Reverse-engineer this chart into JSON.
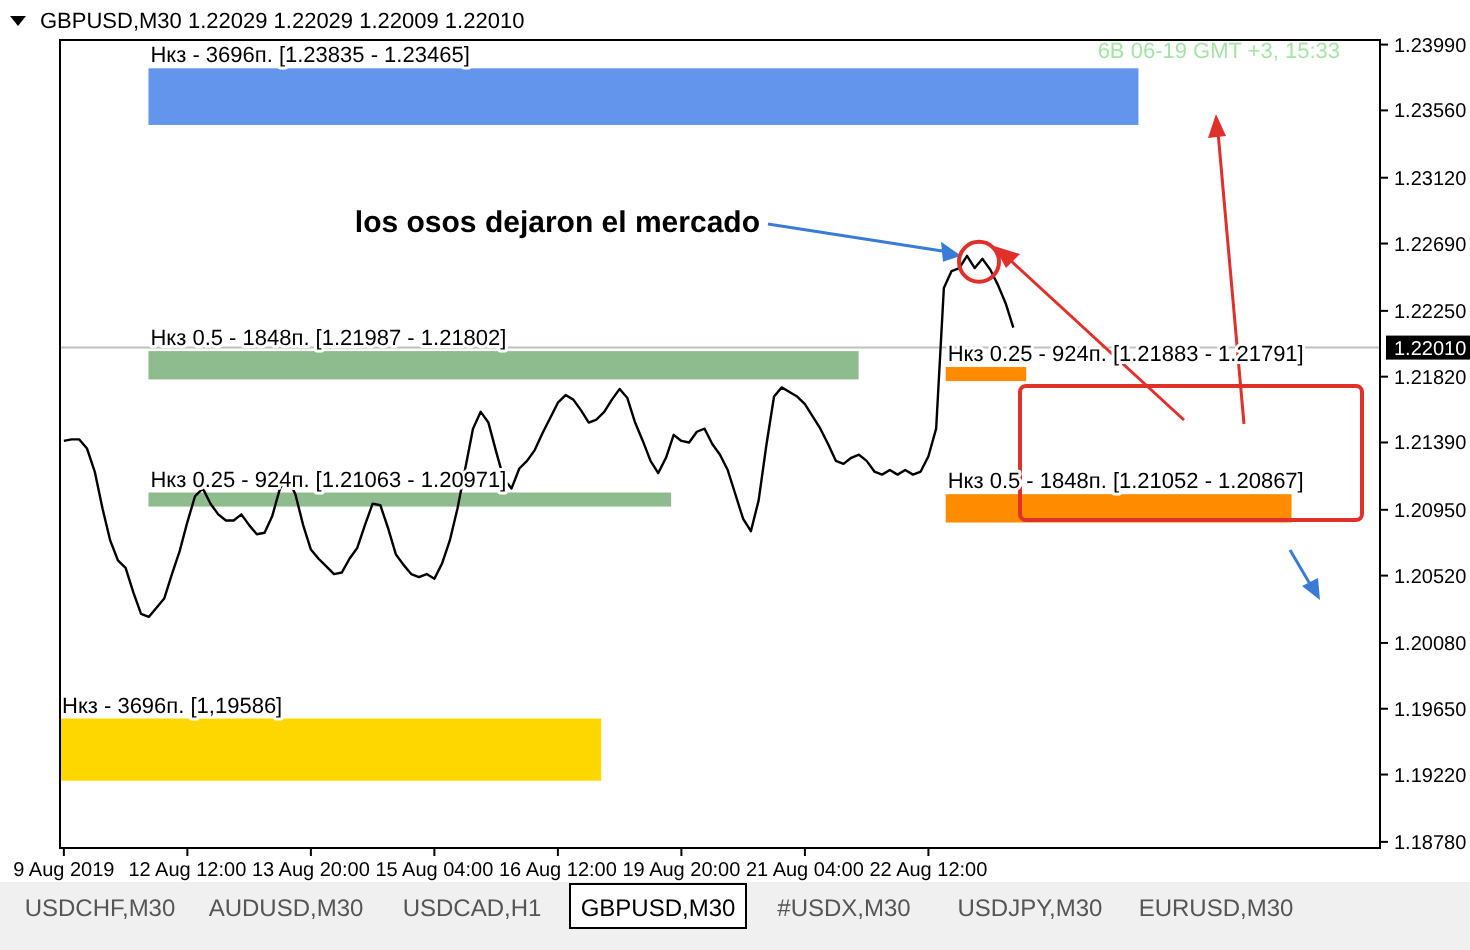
{
  "chart_data": {
    "type": "line",
    "title": "GBPUSD,M30  1.22029 1.22029 1.22009 1.22010",
    "categories": [
      "9 Aug 2019",
      null,
      null,
      null,
      null,
      null,
      null,
      null,
      null,
      null,
      null,
      null,
      null,
      null,
      null,
      null,
      "12 Aug 12:00",
      null,
      null,
      null,
      null,
      null,
      null,
      null,
      null,
      null,
      null,
      null,
      null,
      null,
      null,
      null,
      "13 Aug 20:00",
      null,
      null,
      null,
      null,
      null,
      null,
      null,
      null,
      null,
      null,
      null,
      null,
      null,
      null,
      null,
      "15 Aug 04:00",
      null,
      null,
      null,
      null,
      null,
      null,
      null,
      null,
      null,
      null,
      null,
      null,
      null,
      null,
      null,
      "16 Aug 12:00",
      null,
      null,
      null,
      null,
      null,
      null,
      null,
      null,
      null,
      null,
      null,
      null,
      null,
      null,
      null,
      "19 Aug 20:00",
      null,
      null,
      null,
      null,
      null,
      null,
      null,
      null,
      null,
      null,
      null,
      null,
      null,
      null,
      null,
      "21 Aug 04:00",
      null,
      null,
      null,
      null,
      null,
      null,
      null,
      null,
      null,
      null,
      null,
      null,
      null,
      null,
      null,
      "22 Aug 12:00",
      null,
      null,
      null,
      null,
      null,
      null,
      null,
      null,
      null,
      null,
      null,
      null,
      null,
      null,
      null,
      null,
      null,
      null,
      null,
      null,
      null,
      null,
      null,
      null,
      null,
      null,
      null,
      null,
      null,
      null,
      null,
      null,
      null,
      null,
      null,
      null,
      null,
      null,
      null,
      null,
      null,
      null,
      null,
      null,
      null,
      null,
      null,
      null,
      null,
      null,
      null,
      null,
      null,
      null,
      null,
      null,
      null,
      null
    ],
    "ylim": [
      1.1874,
      1.2402
    ],
    "yticks": [
      {
        "value": 1.1878,
        "label": "1.18780"
      },
      {
        "value": 1.1922,
        "label": "1.19220"
      },
      {
        "value": 1.1965,
        "label": "1.19650"
      },
      {
        "value": 1.2008,
        "label": "1.20080"
      },
      {
        "value": 1.2052,
        "label": "1.20520"
      },
      {
        "value": 1.2095,
        "label": "1.20950"
      },
      {
        "value": 1.2139,
        "label": "1.21390"
      },
      {
        "value": 1.2182,
        "label": "1.21820"
      },
      {
        "value": 1.2225,
        "label": "1.22250"
      },
      {
        "value": 1.2269,
        "label": "1.22690"
      },
      {
        "value": 1.2312,
        "label": "1.23120"
      },
      {
        "value": 1.2356,
        "label": "1.23560"
      },
      {
        "value": 1.2399,
        "label": "1.23990"
      }
    ],
    "grid": false,
    "legend": false,
    "series": [
      {
        "color": "#000000",
        "values": [
          1.214,
          1.2141,
          1.2141,
          1.2135,
          1.212,
          1.2096,
          1.2075,
          1.2062,
          1.2057,
          1.2041,
          1.2027,
          1.2025,
          1.2031,
          1.2037,
          1.2053,
          1.2068,
          1.2087,
          1.2104,
          1.2109,
          1.2099,
          1.2092,
          1.2088,
          1.2088,
          1.2092,
          1.2085,
          1.2079,
          1.208,
          1.2091,
          1.2109,
          1.2116,
          1.2105,
          1.2085,
          1.2069,
          1.2063,
          1.2058,
          1.2053,
          1.2054,
          1.2063,
          1.207,
          1.2085,
          1.2099,
          1.2098,
          1.2083,
          1.2066,
          1.2059,
          1.2053,
          1.2051,
          1.2053,
          1.205,
          1.206,
          1.2075,
          1.2096,
          1.2122,
          1.2148,
          1.2159,
          1.2152,
          1.2133,
          1.2115,
          1.2109,
          1.2122,
          1.2127,
          1.2134,
          1.2145,
          1.2155,
          1.2165,
          1.217,
          1.2167,
          1.216,
          1.2152,
          1.2154,
          1.2159,
          1.2167,
          1.2174,
          1.2168,
          1.2152,
          1.214,
          1.2127,
          1.2119,
          1.2129,
          1.2144,
          1.214,
          1.2139,
          1.2146,
          1.2148,
          1.2138,
          1.2131,
          1.2121,
          1.2105,
          1.2089,
          1.2081,
          1.2101,
          1.2137,
          1.2169,
          1.2175,
          1.2172,
          1.2169,
          1.2164,
          1.2156,
          1.2148,
          1.2138,
          1.2127,
          1.2125,
          1.2129,
          1.2131,
          1.2127,
          1.212,
          1.2118,
          1.2121,
          1.2118,
          1.2121,
          1.2118,
          1.212,
          1.213,
          1.2148,
          1.224,
          1.2251,
          1.2253,
          1.2261,
          1.2253,
          1.2259,
          1.2252,
          1.2242,
          1.223,
          1.2214,
          null,
          null,
          null,
          null,
          null,
          null,
          null,
          null,
          null,
          null,
          null,
          null,
          null,
          null,
          null,
          null,
          null,
          null,
          null,
          null,
          null,
          null,
          null,
          null,
          null,
          null,
          null,
          null,
          null,
          null,
          null,
          null,
          null,
          null,
          null,
          null,
          null,
          null,
          null,
          null,
          null,
          null,
          null,
          null,
          null,
          null,
          null
        ]
      }
    ],
    "bands": [
      {
        "axis": "y",
        "from": 1.23465,
        "to": 1.23835,
        "label": "Нкз - 3696п. [1.23835 - 1.23465]",
        "color": "#6495ed"
      },
      {
        "axis": "y",
        "from": 1.21802,
        "to": 1.21987,
        "label": "Нкз 0.5 - 1848п. [1.21987 - 1.21802]",
        "color": "#8fbc8f"
      },
      {
        "axis": "y",
        "from": 1.20971,
        "to": 1.21063,
        "label": "Нкз 0.25 - 924п. [1.21063 - 1.20971]",
        "color": "#8fbc8f"
      },
      {
        "axis": "y",
        "from": 1.21791,
        "to": 1.21883,
        "label": "Нкз 0.25 - 924п. [1.21883 - 1.21791]",
        "color": "#ff8c00"
      },
      {
        "axis": "y",
        "from": 1.20867,
        "to": 1.21052,
        "label": "Нкз 0.5 - 1848п. [1.21052 - 1.20867]",
        "color": "#ff8c00"
      },
      {
        "axis": "y",
        "from": 1.1918,
        "to": 1.19586,
        "label": "Нкз - 3696п. [1,19586]",
        "color": "#ffd700"
      }
    ],
    "ref_lines": [
      {
        "axis": "y",
        "value": 1.2201,
        "label": "1.22010",
        "color": "#c0c0c0",
        "line_style": "solid"
      }
    ],
    "annotations": [
      "los osos dejaron el mercado",
      "6B 06-19 GMT +3, 15:33",
      "USDCHF,M30",
      "AUDUSD,M30",
      "USDCAD,H1",
      "GBPUSD,M30",
      "#USDX,M30",
      "USDJPY,M30",
      "EURUSD,M30"
    ]
  }
}
